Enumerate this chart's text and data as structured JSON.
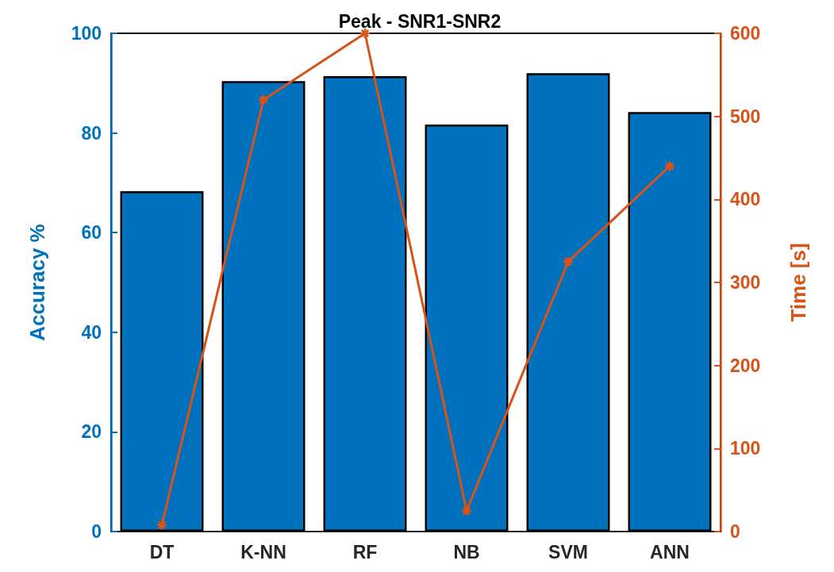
{
  "chart_data": {
    "type": "bar",
    "title": "Peak - SNR1-SNR2",
    "ylabel": "Accuracy %",
    "y2label": "Time [s]",
    "categories": [
      "DT",
      "K-NN",
      "RF",
      "NB",
      "SVM",
      "ANN"
    ],
    "series": [
      {
        "color": "#0072bd",
        "values": [
          68.3,
          90.4,
          91.4,
          81.7,
          92.0,
          84.2
        ]
      },
      {
        "type": "line",
        "axis": "y2",
        "color": "#d95319",
        "values": [
          8,
          520,
          600,
          25,
          325,
          440
        ],
        "marker": "cross",
        "line_style": "solid"
      }
    ],
    "ylim": [
      0,
      100
    ],
    "yticks": [
      0,
      20,
      40,
      60,
      80,
      100
    ],
    "y2lim": [
      0,
      600
    ],
    "y2ticks": [
      0,
      100,
      200,
      300,
      400,
      500,
      600
    ],
    "grid": false
  }
}
